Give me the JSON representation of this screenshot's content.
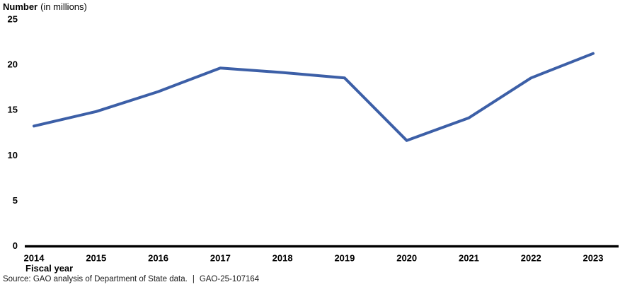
{
  "chart_data": {
    "type": "line",
    "title": "Number",
    "title_suffix": "(in millions)",
    "xlabel": "Fiscal year",
    "categories": [
      "2014",
      "2015",
      "2016",
      "2017",
      "2018",
      "2019",
      "2020",
      "2021",
      "2022",
      "2023"
    ],
    "values": [
      13.2,
      14.8,
      17.0,
      19.6,
      19.1,
      18.5,
      11.6,
      14.1,
      18.5,
      21.2
    ],
    "yticks": [
      0,
      5,
      10,
      15,
      20,
      25
    ],
    "ylim": [
      0,
      25
    ],
    "grid": false,
    "legend": false,
    "line_color": "#3C5FA7",
    "axis_color": "#000000"
  },
  "footer": {
    "source_text": "Source: GAO analysis of Department of State data.",
    "separator": "|",
    "report_number": "GAO-25-107164"
  }
}
